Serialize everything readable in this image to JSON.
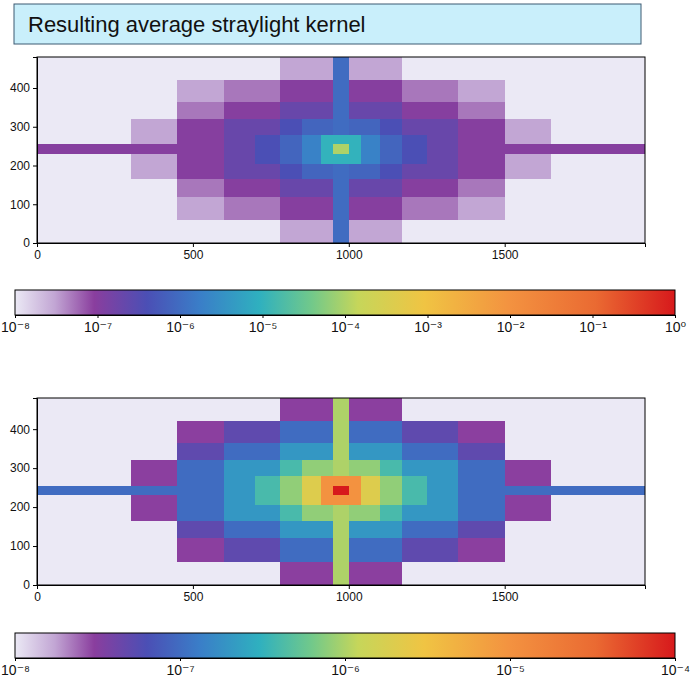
{
  "title": "Resulting average straylight kernel",
  "chart_data": [
    {
      "type": "heatmap",
      "xlim": [
        0,
        1950
      ],
      "ylim": [
        0,
        480
      ],
      "xticks": [
        0,
        500,
        1000,
        1500
      ],
      "yticks": [
        0,
        100,
        200,
        300,
        400
      ],
      "x_edges": [
        0,
        150,
        300,
        450,
        600,
        700,
        780,
        850,
        910,
        950,
        1000,
        1040,
        1100,
        1170,
        1250,
        1350,
        1500,
        1650,
        1800,
        1950
      ],
      "y_edges": [
        0,
        60,
        120,
        165,
        205,
        230,
        255,
        280,
        320,
        365,
        420,
        480
      ],
      "cells": [
        [
          1e-08,
          1e-08,
          1e-08,
          1e-08,
          1e-08,
          1e-08,
          3e-08,
          3e-08,
          3e-08,
          1e-06,
          3e-08,
          3e-08,
          3e-08,
          1e-08,
          1e-08,
          1e-08,
          1e-08,
          1e-08,
          1e-08
        ],
        [
          1e-08,
          1e-08,
          1e-08,
          3e-08,
          5e-08,
          5e-08,
          1e-07,
          1e-07,
          1e-07,
          1e-06,
          1e-07,
          1e-07,
          1e-07,
          5e-08,
          5e-08,
          3e-08,
          1e-08,
          1e-08,
          1e-08
        ],
        [
          1e-08,
          1e-08,
          1e-08,
          5e-08,
          1e-07,
          1e-07,
          2e-07,
          2e-07,
          2e-07,
          1e-06,
          2e-07,
          2e-07,
          2e-07,
          1e-07,
          1e-07,
          5e-08,
          1e-08,
          1e-08,
          1e-08
        ],
        [
          1e-08,
          1e-08,
          3e-08,
          1e-07,
          2e-07,
          2e-07,
          4e-07,
          8e-07,
          8e-07,
          1e-06,
          8e-07,
          8e-07,
          4e-07,
          2e-07,
          2e-07,
          1e-07,
          3e-08,
          1e-08,
          1e-08
        ],
        [
          1e-08,
          1e-08,
          3e-08,
          1e-07,
          2e-07,
          4e-07,
          8e-07,
          2e-06,
          1e-05,
          1e-05,
          1e-05,
          2e-06,
          8e-07,
          4e-07,
          2e-07,
          1e-07,
          3e-08,
          1e-08,
          1e-08
        ],
        [
          1e-07,
          1e-07,
          1e-07,
          1e-07,
          2e-07,
          4e-07,
          8e-07,
          2e-06,
          1e-05,
          0.0001,
          1e-05,
          2e-06,
          8e-07,
          4e-07,
          2e-07,
          1e-07,
          1e-07,
          1e-07,
          1e-07
        ],
        [
          1e-08,
          1e-08,
          3e-08,
          1e-07,
          2e-07,
          4e-07,
          8e-07,
          2e-06,
          1e-05,
          1e-05,
          1e-05,
          2e-06,
          8e-07,
          4e-07,
          2e-07,
          1e-07,
          3e-08,
          1e-08,
          1e-08
        ],
        [
          1e-08,
          1e-08,
          3e-08,
          1e-07,
          2e-07,
          2e-07,
          4e-07,
          8e-07,
          8e-07,
          1e-06,
          8e-07,
          8e-07,
          4e-07,
          2e-07,
          2e-07,
          1e-07,
          3e-08,
          1e-08,
          1e-08
        ],
        [
          1e-08,
          1e-08,
          1e-08,
          5e-08,
          1e-07,
          1e-07,
          2e-07,
          2e-07,
          2e-07,
          1e-06,
          2e-07,
          2e-07,
          2e-07,
          1e-07,
          1e-07,
          5e-08,
          1e-08,
          1e-08,
          1e-08
        ],
        [
          1e-08,
          1e-08,
          1e-08,
          3e-08,
          5e-08,
          5e-08,
          1e-07,
          1e-07,
          1e-07,
          1e-06,
          1e-07,
          1e-07,
          1e-07,
          5e-08,
          5e-08,
          3e-08,
          1e-08,
          1e-08,
          1e-08
        ],
        [
          1e-08,
          1e-08,
          1e-08,
          1e-08,
          1e-08,
          1e-08,
          3e-08,
          3e-08,
          3e-08,
          1e-06,
          3e-08,
          3e-08,
          3e-08,
          1e-08,
          1e-08,
          1e-08,
          1e-08,
          1e-08,
          1e-08
        ]
      ],
      "colorbar": {
        "range": [
          1e-08,
          1
        ],
        "log": true,
        "ticks": [
          {
            "value": 1e-08,
            "label": "10⁻⁸"
          },
          {
            "value": 1e-07,
            "label": "10⁻⁷"
          },
          {
            "value": 1e-06,
            "label": "10⁻⁶"
          },
          {
            "value": 1e-05,
            "label": "10⁻⁵"
          },
          {
            "value": 0.0001,
            "label": "10⁻⁴"
          },
          {
            "value": 0.001,
            "label": "10⁻³"
          },
          {
            "value": 0.01,
            "label": "10⁻²"
          },
          {
            "value": 0.1,
            "label": "10⁻¹"
          },
          {
            "value": 1,
            "label": "10⁰"
          }
        ]
      }
    },
    {
      "type": "heatmap",
      "xlim": [
        0,
        1950
      ],
      "ylim": [
        0,
        480
      ],
      "xticks": [
        0,
        500,
        1000,
        1500
      ],
      "yticks": [
        0,
        100,
        200,
        300,
        400
      ],
      "x_edges": [
        0,
        150,
        300,
        450,
        600,
        700,
        780,
        850,
        910,
        950,
        1000,
        1040,
        1100,
        1170,
        1250,
        1350,
        1500,
        1650,
        1800,
        1950
      ],
      "y_edges": [
        0,
        60,
        120,
        165,
        205,
        230,
        255,
        280,
        320,
        365,
        420,
        480
      ],
      "cells": [
        [
          1e-08,
          1e-08,
          1e-08,
          1e-08,
          1e-08,
          1e-08,
          3e-08,
          3e-08,
          3e-08,
          1e-06,
          3e-08,
          3e-08,
          3e-08,
          1e-08,
          1e-08,
          1e-08,
          1e-08,
          1e-08,
          1e-08
        ],
        [
          1e-08,
          1e-08,
          1e-08,
          3e-08,
          5e-08,
          5e-08,
          1e-07,
          1e-07,
          1e-07,
          1e-06,
          1e-07,
          1e-07,
          1e-07,
          5e-08,
          5e-08,
          3e-08,
          1e-08,
          1e-08,
          1e-08
        ],
        [
          1e-08,
          1e-08,
          1e-08,
          5e-08,
          1e-07,
          1e-07,
          2e-07,
          2e-07,
          2e-07,
          1e-06,
          2e-07,
          2e-07,
          2e-07,
          1e-07,
          1e-07,
          5e-08,
          1e-08,
          1e-08,
          1e-08
        ],
        [
          1e-08,
          1e-08,
          3e-08,
          1e-07,
          2e-07,
          2e-07,
          4e-07,
          8e-07,
          8e-07,
          1e-06,
          8e-07,
          8e-07,
          4e-07,
          2e-07,
          2e-07,
          1e-07,
          3e-08,
          1e-08,
          1e-08
        ],
        [
          1e-08,
          1e-08,
          3e-08,
          1e-07,
          2e-07,
          4e-07,
          8e-07,
          2e-06,
          1e-05,
          1e-05,
          1e-05,
          2e-06,
          8e-07,
          4e-07,
          2e-07,
          1e-07,
          3e-08,
          1e-08,
          1e-08
        ],
        [
          1e-07,
          1e-07,
          1e-07,
          1e-07,
          2e-07,
          4e-07,
          8e-07,
          2e-06,
          1e-05,
          0.0001,
          1e-05,
          2e-06,
          8e-07,
          4e-07,
          2e-07,
          1e-07,
          1e-07,
          1e-07,
          1e-07
        ],
        [
          1e-08,
          1e-08,
          3e-08,
          1e-07,
          2e-07,
          4e-07,
          8e-07,
          2e-06,
          1e-05,
          1e-05,
          1e-05,
          2e-06,
          8e-07,
          4e-07,
          2e-07,
          1e-07,
          3e-08,
          1e-08,
          1e-08
        ],
        [
          1e-08,
          1e-08,
          3e-08,
          1e-07,
          2e-07,
          2e-07,
          4e-07,
          8e-07,
          8e-07,
          1e-06,
          8e-07,
          8e-07,
          4e-07,
          2e-07,
          2e-07,
          1e-07,
          3e-08,
          1e-08,
          1e-08
        ],
        [
          1e-08,
          1e-08,
          1e-08,
          5e-08,
          1e-07,
          1e-07,
          2e-07,
          2e-07,
          2e-07,
          1e-06,
          2e-07,
          2e-07,
          2e-07,
          1e-07,
          1e-07,
          5e-08,
          1e-08,
          1e-08,
          1e-08
        ],
        [
          1e-08,
          1e-08,
          1e-08,
          3e-08,
          5e-08,
          5e-08,
          1e-07,
          1e-07,
          1e-07,
          1e-06,
          1e-07,
          1e-07,
          1e-07,
          5e-08,
          5e-08,
          3e-08,
          1e-08,
          1e-08,
          1e-08
        ],
        [
          1e-08,
          1e-08,
          1e-08,
          1e-08,
          1e-08,
          1e-08,
          3e-08,
          3e-08,
          3e-08,
          1e-06,
          3e-08,
          3e-08,
          3e-08,
          1e-08,
          1e-08,
          1e-08,
          1e-08,
          1e-08,
          1e-08
        ]
      ],
      "colorbar": {
        "range": [
          1e-08,
          0.0001
        ],
        "log": true,
        "ticks": [
          {
            "value": 1e-08,
            "label": "10⁻⁸"
          },
          {
            "value": 1e-07,
            "label": "10⁻⁷"
          },
          {
            "value": 1e-06,
            "label": "10⁻⁶"
          },
          {
            "value": 1e-05,
            "label": "10⁻⁵"
          },
          {
            "value": 0.0001,
            "label": "10⁻⁴"
          }
        ]
      }
    }
  ]
}
